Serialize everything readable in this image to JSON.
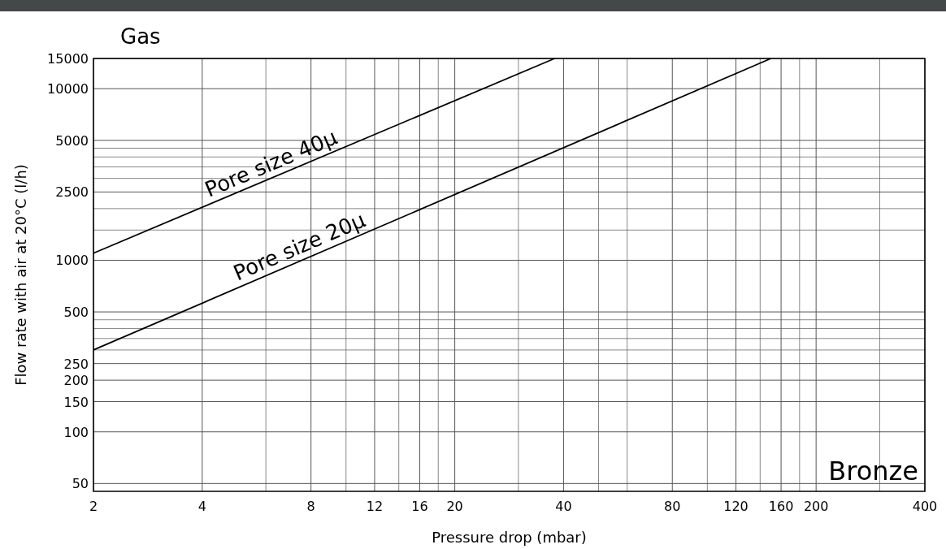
{
  "chart_data": {
    "type": "line",
    "title": "Gas",
    "xlabel": "Pressure drop (mbar)",
    "ylabel": "Flow rate with air at 20°C (l/h)",
    "log": "xy",
    "grid": true,
    "marker": "none",
    "line_style": "solid",
    "xlim": [
      2,
      400
    ],
    "ylim": [
      45,
      15000
    ],
    "xticks": [
      2,
      4,
      {
        "value": 6,
        "label": null
      },
      8,
      {
        "value": 10,
        "label": null
      },
      12,
      {
        "value": 14,
        "label": null
      },
      16,
      {
        "value": 18,
        "label": null
      },
      20,
      {
        "value": 30,
        "label": null
      },
      40,
      {
        "value": 50,
        "label": null
      },
      {
        "value": 60,
        "label": null
      },
      80,
      {
        "value": 100,
        "label": null
      },
      120,
      {
        "value": 140,
        "label": null
      },
      160,
      {
        "value": 180,
        "label": null
      },
      200,
      {
        "value": 300,
        "label": null
      },
      400
    ],
    "yticks": [
      50,
      100,
      150,
      200,
      250,
      {
        "value": 300,
        "label": null
      },
      {
        "value": 350,
        "label": null
      },
      {
        "value": 400,
        "label": null
      },
      {
        "value": 450,
        "label": null
      },
      500,
      1000,
      {
        "value": 1500,
        "label": null
      },
      {
        "value": 2000,
        "label": null
      },
      2500,
      {
        "value": 3000,
        "label": null
      },
      {
        "value": 3500,
        "label": null
      },
      {
        "value": 4000,
        "label": null
      },
      {
        "value": 4500,
        "label": null
      },
      5000,
      10000,
      15000
    ],
    "series": [
      {
        "color": "#000000",
        "x": [
          2,
          37.8
        ],
        "values": [
          1100,
          15000
        ]
      },
      {
        "color": "#000000",
        "x": [
          2,
          150
        ],
        "values": [
          300,
          15000
        ]
      }
    ],
    "annotations": [
      "Pore size 40µ",
      "Pore size 20µ",
      "Bronze"
    ]
  }
}
